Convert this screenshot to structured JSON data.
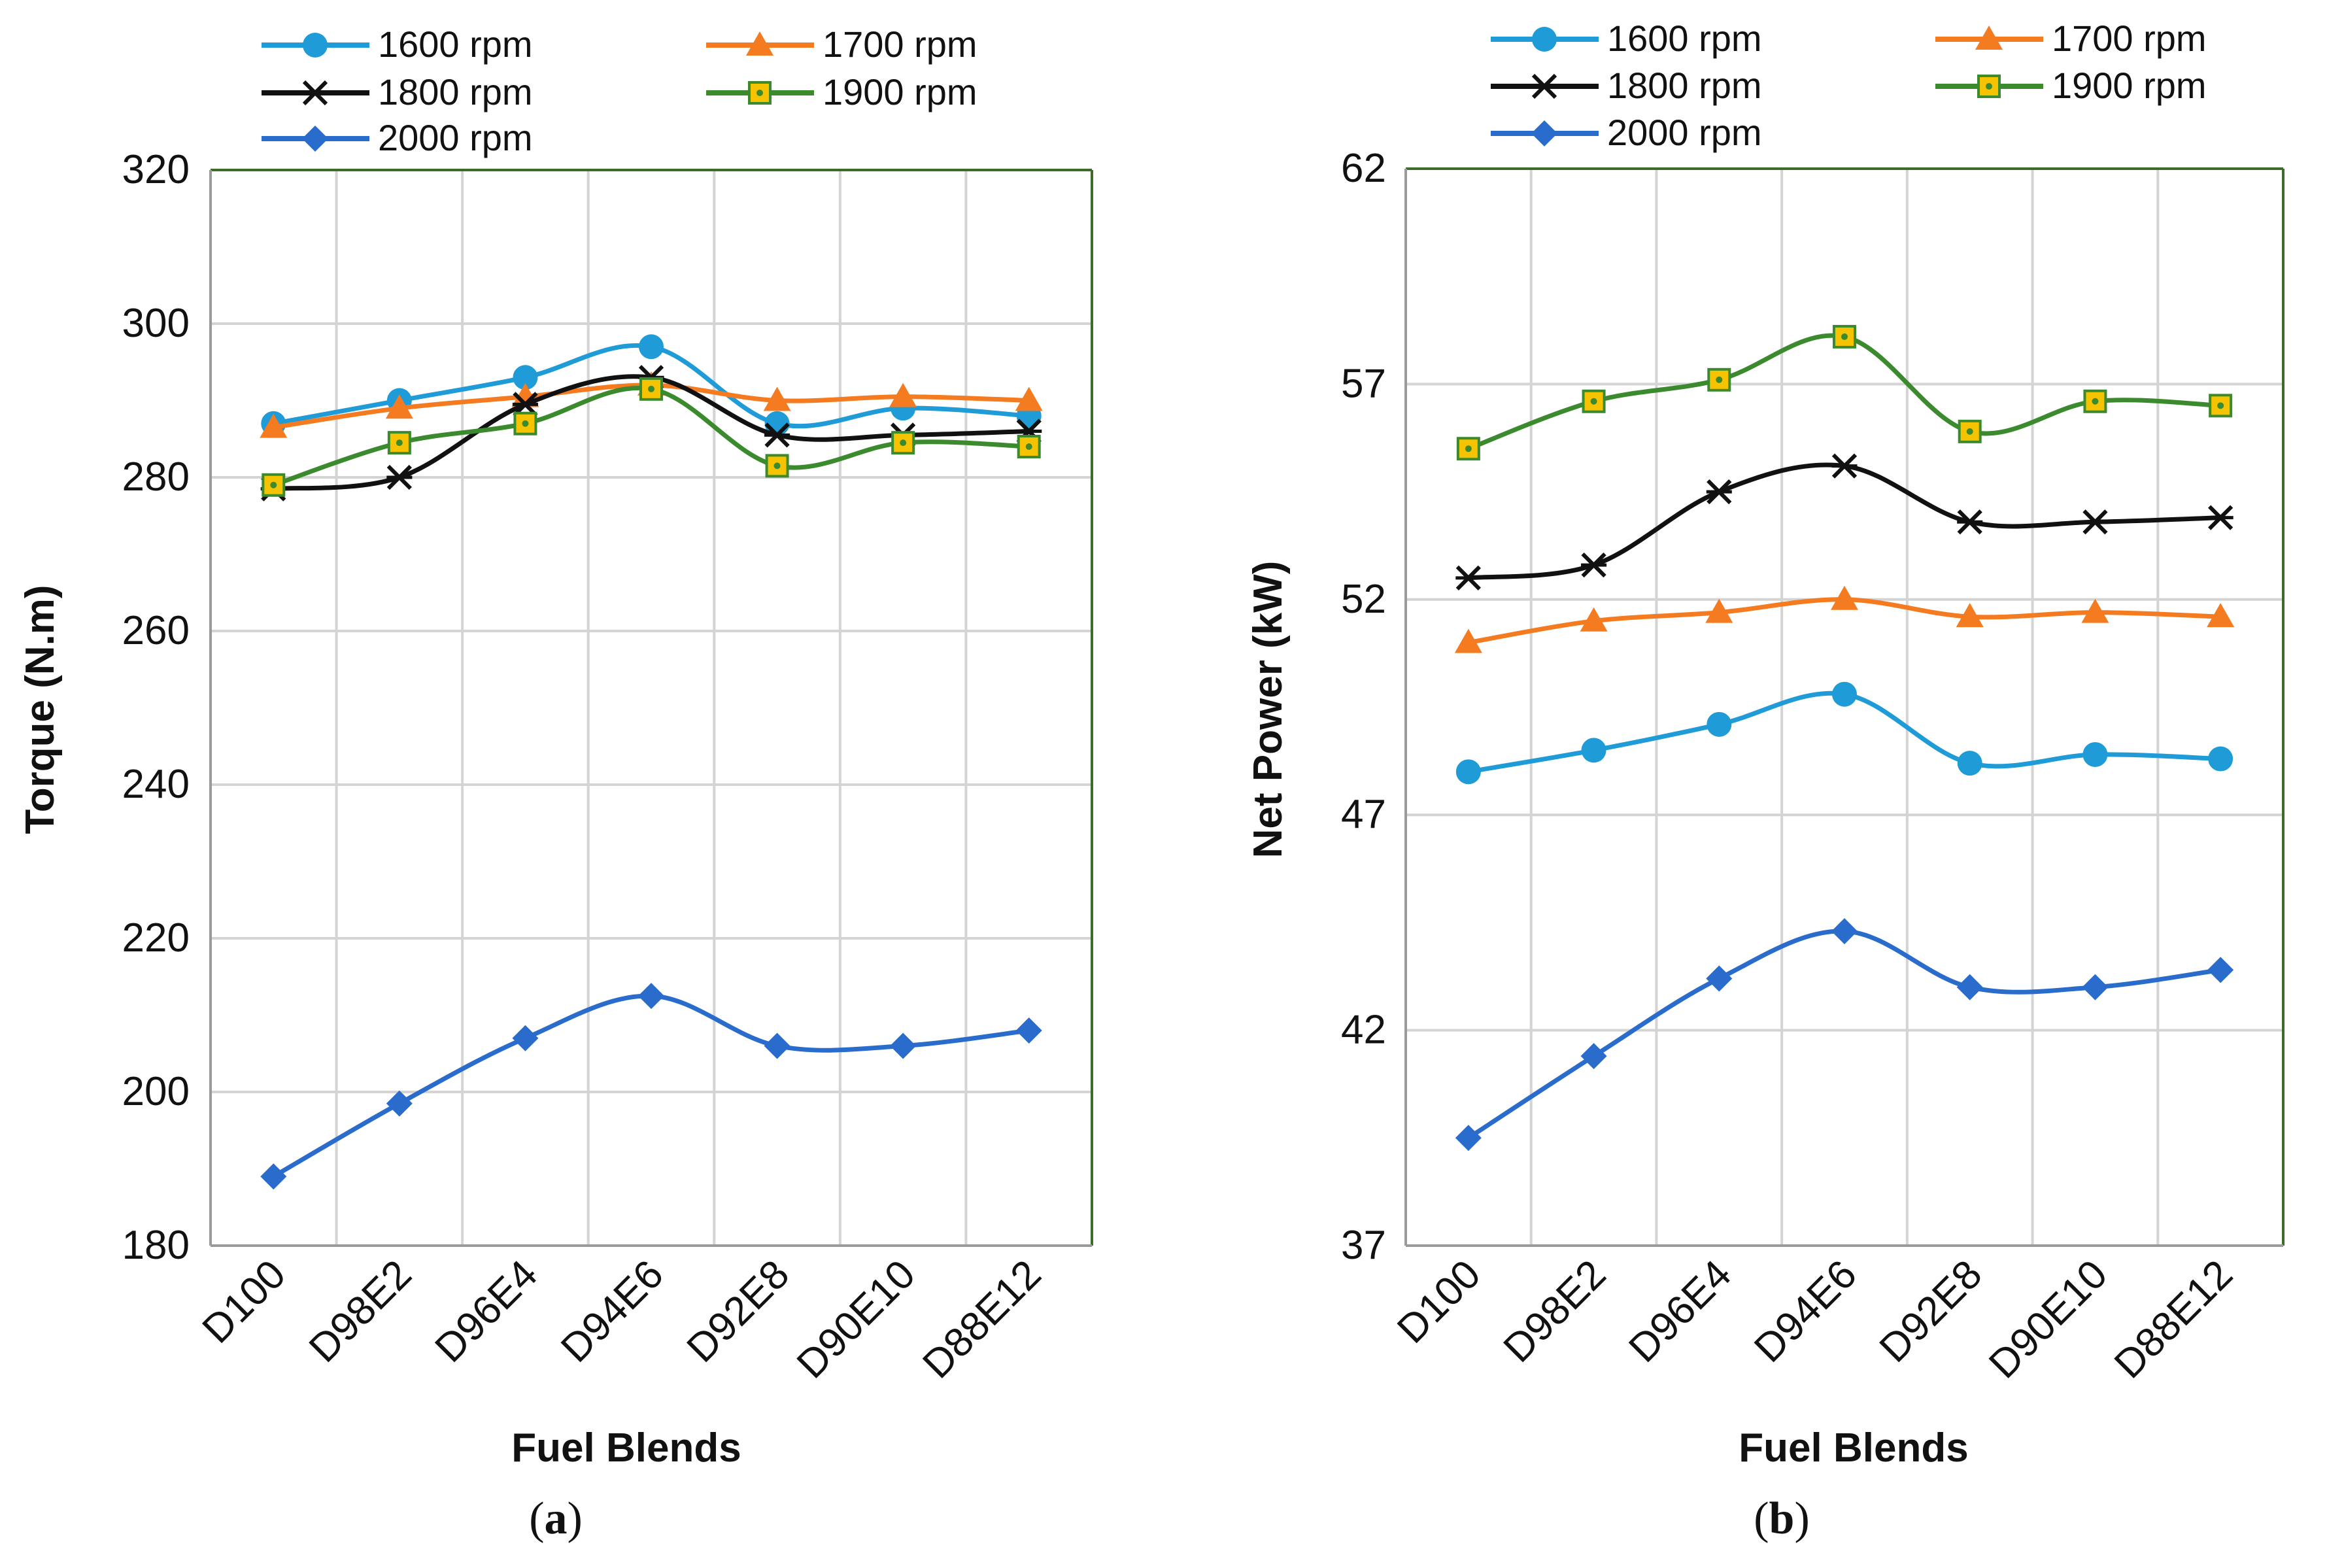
{
  "chart_data": [
    {
      "type": "line",
      "panel_label": "a",
      "xlabel": "Fuel Blends",
      "ylabel": "Torque (N.m)",
      "ylim": [
        180,
        320
      ],
      "ytick_step": 20,
      "yticks": [
        "320",
        "300",
        "280",
        "260",
        "240",
        "220",
        "200",
        "180"
      ],
      "grid": true,
      "legend_position": "top",
      "categories": [
        "D100",
        "D98E2",
        "D96E4",
        "D94E6",
        "D92E8",
        "D90E10",
        "D88E12"
      ],
      "series": [
        {
          "name": "1600 rpm",
          "color": "#1f9bd7",
          "marker": "circle",
          "values": [
            287,
            290,
            293,
            297,
            287,
            289,
            288
          ]
        },
        {
          "name": "1700 rpm",
          "color": "#f47b20",
          "marker": "triangle",
          "values": [
            286.5,
            289,
            290.5,
            292,
            290,
            290.5,
            290
          ]
        },
        {
          "name": "1800 rpm",
          "color": "#111111",
          "marker": "asterisk",
          "values": [
            278.5,
            280,
            289.5,
            293,
            285.5,
            285.5,
            286
          ]
        },
        {
          "name": "1900 rpm",
          "color": "#3c8a2e",
          "marker": "square",
          "values": [
            279,
            284.5,
            287,
            291.5,
            281.5,
            284.5,
            284
          ]
        },
        {
          "name": "2000 rpm",
          "color": "#2a6ccc",
          "marker": "diamond",
          "values": [
            189,
            198.5,
            207,
            212.5,
            206,
            206,
            208
          ]
        }
      ]
    },
    {
      "type": "line",
      "panel_label": "b",
      "xlabel": "Fuel Blends",
      "ylabel": "Net Power (kW)",
      "ylim": [
        37,
        62
      ],
      "ytick_step": 5,
      "yticks": [
        "62",
        "57",
        "52",
        "47",
        "42",
        "37"
      ],
      "grid": true,
      "legend_position": "top",
      "categories": [
        "D100",
        "D98E2",
        "D96E4",
        "D94E6",
        "D92E8",
        "D90E10",
        "D88E12"
      ],
      "series": [
        {
          "name": "1600 rpm",
          "color": "#1f9bd7",
          "marker": "circle",
          "values": [
            48,
            48.5,
            49.1,
            49.8,
            48.2,
            48.4,
            48.3
          ]
        },
        {
          "name": "1700 rpm",
          "color": "#f47b20",
          "marker": "triangle",
          "values": [
            51,
            51.5,
            51.7,
            52,
            51.6,
            51.7,
            51.6
          ]
        },
        {
          "name": "1800 rpm",
          "color": "#111111",
          "marker": "asterisk",
          "values": [
            52.5,
            52.8,
            54.5,
            55.1,
            53.8,
            53.8,
            53.9
          ]
        },
        {
          "name": "1900 rpm",
          "color": "#3c8a2e",
          "marker": "square",
          "values": [
            55.5,
            56.6,
            57.1,
            58.1,
            55.9,
            56.6,
            56.5
          ]
        },
        {
          "name": "2000 rpm",
          "color": "#2a6ccc",
          "marker": "diamond",
          "values": [
            39.5,
            41.4,
            43.2,
            44.3,
            43,
            43,
            43.4
          ]
        }
      ]
    }
  ]
}
